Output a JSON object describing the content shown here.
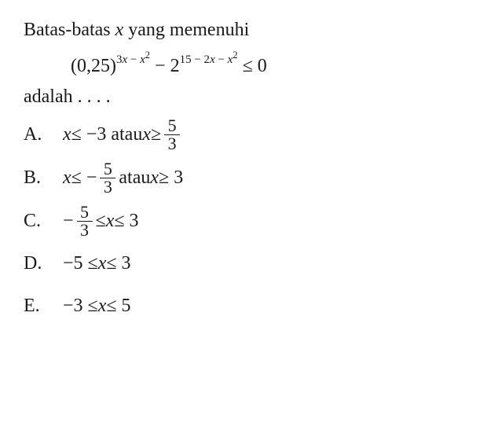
{
  "question": {
    "line1_part1": "Batas-batas ",
    "line1_var": "x",
    "line1_part2": " yang memenuhi",
    "equation_base1": "(0,25)",
    "equation_exp1_a": "3",
    "equation_exp1_var1": "x",
    "equation_exp1_b": " − ",
    "equation_exp1_var2": "x",
    "equation_exp1_c": "2",
    "equation_minus": " − 2",
    "equation_exp2_a": "15 − 2",
    "equation_exp2_var1": "x",
    "equation_exp2_b": " − ",
    "equation_exp2_var2": "x",
    "equation_exp2_c": "2",
    "equation_end": " ≤ 0",
    "adalah": "adalah . . . ."
  },
  "options": {
    "a": {
      "label": "A.",
      "var1": "x",
      "text1": " ≤ −3 atau ",
      "var2": "x",
      "text2": " ≥ ",
      "frac_num": "5",
      "frac_den": "3"
    },
    "b": {
      "label": "B.",
      "var1": "x",
      "text1": " ≤ − ",
      "frac_num": "5",
      "frac_den": "3",
      "text2": " atau ",
      "var2": "x",
      "text3": " ≥ 3"
    },
    "c": {
      "label": "C.",
      "text1": "− ",
      "frac_num": "5",
      "frac_den": "3",
      "text2": " ≤ ",
      "var1": "x",
      "text3": " ≤ 3"
    },
    "d": {
      "label": "D.",
      "text1": "−5 ≤ ",
      "var1": "x",
      "text2": " ≤ 3"
    },
    "e": {
      "label": "E.",
      "text1": "−3 ≤ ",
      "var1": "x",
      "text2": " ≤ 5"
    }
  },
  "colors": {
    "text": "#1a1a1a",
    "background": "#ffffff"
  },
  "typography": {
    "body_fontsize": 24,
    "sup_fontsize": 15,
    "frac_fontsize": 22,
    "font_family": "Times New Roman"
  }
}
